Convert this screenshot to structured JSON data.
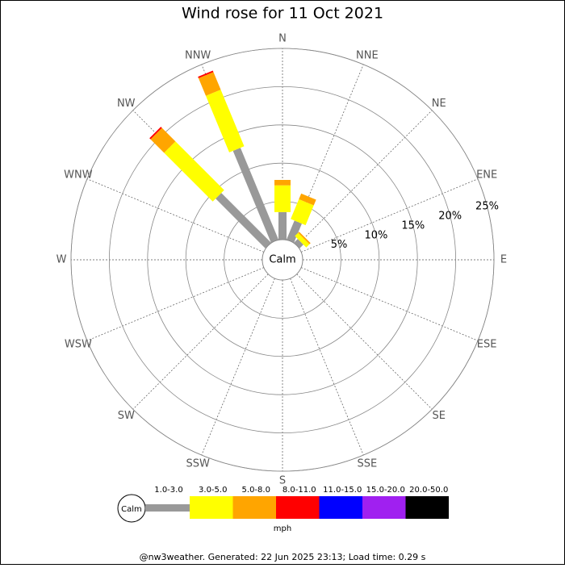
{
  "chart_data": {
    "type": "wind-rose",
    "title": "Wind rose for 11 Oct 2021",
    "directions": [
      "N",
      "NNE",
      "NE",
      "ENE",
      "E",
      "ESE",
      "SE",
      "SSE",
      "S",
      "SSW",
      "SW",
      "WSW",
      "W",
      "WNW",
      "NW",
      "NNW"
    ],
    "center_label": "Calm",
    "unit": "mph",
    "rlim": [
      0,
      25
    ],
    "rticks": [
      {
        "value": 5,
        "label": "5%"
      },
      {
        "value": 10,
        "label": "10%"
      },
      {
        "value": 15,
        "label": "15%"
      },
      {
        "value": 20,
        "label": "20%"
      },
      {
        "value": 25,
        "label": "25%"
      }
    ],
    "series": [
      {
        "name": "1.0-3.0",
        "color": "#999999",
        "values": [
          3.6,
          2.7,
          0.7,
          0,
          0,
          0,
          0,
          0,
          0,
          0,
          0,
          0,
          0,
          0,
          9.2,
          13.0
        ]
      },
      {
        "name": "3.0-5.0",
        "color": "#ffff00",
        "values": [
          3.5,
          2.8,
          0.6,
          0,
          0,
          0,
          0,
          0,
          0,
          0,
          0,
          0,
          0,
          0,
          9.0,
          8.0
        ]
      },
      {
        "name": "5.0-8.0",
        "color": "#ffa500",
        "values": [
          0.7,
          0.8,
          0.2,
          0,
          0,
          0,
          0,
          0,
          0,
          0,
          0,
          0,
          0,
          0,
          2.5,
          2.5
        ]
      },
      {
        "name": "8.0-11.0",
        "color": "#ff0000",
        "values": [
          0,
          0,
          0,
          0,
          0,
          0,
          0,
          0,
          0,
          0,
          0,
          0,
          0,
          0,
          0.2,
          0.2
        ]
      },
      {
        "name": "11.0-15.0",
        "color": "#0000ff",
        "values": [
          0,
          0,
          0,
          0,
          0,
          0,
          0,
          0,
          0,
          0,
          0,
          0,
          0,
          0,
          0,
          0
        ]
      },
      {
        "name": "15.0-20.0",
        "color": "#a020f0",
        "values": [
          0,
          0,
          0,
          0,
          0,
          0,
          0,
          0,
          0,
          0,
          0,
          0,
          0,
          0,
          0,
          0
        ]
      },
      {
        "name": "20.0-50.0",
        "color": "#000000",
        "values": [
          0,
          0,
          0,
          0,
          0,
          0,
          0,
          0,
          0,
          0,
          0,
          0,
          0,
          0,
          0,
          0
        ]
      }
    ]
  },
  "footer": "@nw3weather. Generated: 22 Jun 2025 23:13; Load time: 0.29 s"
}
